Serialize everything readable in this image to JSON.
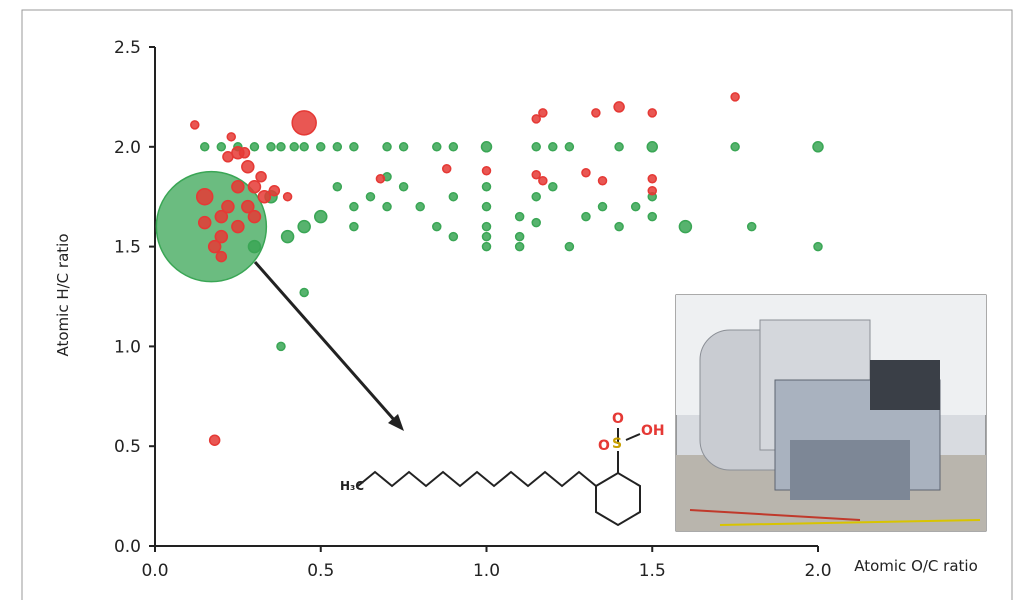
{
  "chart_data": {
    "type": "bubble",
    "x_label": "Atomic O/C ratio",
    "y_label": "Atomic H/C ratio",
    "xlim": [
      0,
      2.0
    ],
    "ylim": [
      0,
      2.5
    ],
    "xticks": [
      {
        "value": 0,
        "label": "0.0"
      },
      {
        "value": 0.5,
        "label": "0.5"
      },
      {
        "value": 1,
        "label": "1.0"
      },
      {
        "value": 1.5,
        "label": "1.5"
      },
      {
        "value": 2,
        "label": "2.0"
      }
    ],
    "yticks": [
      {
        "value": 0,
        "label": "0.0"
      },
      {
        "value": 0.5,
        "label": "0.5"
      },
      {
        "value": 1,
        "label": "1.0"
      },
      {
        "value": 1.5,
        "label": "1.5"
      },
      {
        "value": 2,
        "label": "2.0"
      },
      {
        "value": 2.5,
        "label": "2.5"
      }
    ],
    "series": [
      {
        "color": "#3aa655",
        "x": [
          0.17,
          0.15,
          0.2,
          0.25,
          0.3,
          0.35,
          0.38,
          0.42,
          0.45,
          0.5,
          0.55,
          0.6,
          0.7,
          0.75,
          0.85,
          0.9,
          1.0,
          1.15,
          1.2,
          1.25,
          1.4,
          1.5,
          1.75,
          2.0,
          0.45,
          0.38,
          0.55,
          0.6,
          0.6,
          0.65,
          0.7,
          0.7,
          0.75,
          0.8,
          0.85,
          0.9,
          0.9,
          1.0,
          1.0,
          1.0,
          1.0,
          1.0,
          1.1,
          1.1,
          1.1,
          1.15,
          1.15,
          1.2,
          1.25,
          1.3,
          1.35,
          1.4,
          1.45,
          1.5,
          1.5,
          1.6,
          1.8,
          2.0,
          0.4,
          0.45,
          0.5,
          0.35,
          0.3
        ],
        "y": [
          1.6,
          2.0,
          2.0,
          2.0,
          2.0,
          2.0,
          2.0,
          2.0,
          2.0,
          2.0,
          2.0,
          2.0,
          2.0,
          2.0,
          2.0,
          2.0,
          2.0,
          2.0,
          2.0,
          2.0,
          2.0,
          2.0,
          2.0,
          2.0,
          1.27,
          1.0,
          1.8,
          1.7,
          1.6,
          1.75,
          1.85,
          1.7,
          1.8,
          1.7,
          1.6,
          1.75,
          1.55,
          1.8,
          1.7,
          1.6,
          1.55,
          1.5,
          1.65,
          1.55,
          1.5,
          1.75,
          1.62,
          1.8,
          1.5,
          1.65,
          1.7,
          1.6,
          1.7,
          1.75,
          1.65,
          1.6,
          1.6,
          1.5,
          1.55,
          1.6,
          1.65,
          1.75,
          1.5
        ],
        "sizes": [
          55,
          4,
          4,
          4,
          4,
          4,
          4,
          4,
          4,
          4,
          4,
          4,
          4,
          4,
          4,
          4,
          5,
          4,
          4,
          4,
          4,
          5,
          4,
          5,
          4,
          4,
          4,
          4,
          4,
          4,
          4,
          4,
          4,
          4,
          4,
          4,
          4,
          4,
          4,
          4,
          4,
          4,
          4,
          4,
          4,
          4,
          4,
          4,
          4,
          4,
          4,
          4,
          4,
          4,
          4,
          6,
          4,
          4,
          6,
          6,
          6,
          6,
          6
        ]
      },
      {
        "color": "#e53935",
        "x": [
          0.12,
          0.45,
          0.18,
          0.15,
          0.2,
          0.2,
          0.22,
          0.25,
          0.25,
          0.28,
          0.28,
          0.3,
          0.3,
          0.33,
          0.22,
          0.25,
          0.27,
          0.32,
          0.36,
          0.4,
          0.15,
          0.18,
          0.2,
          0.23,
          0.88,
          0.68,
          1.0,
          1.15,
          1.17,
          1.33,
          1.4,
          1.5,
          1.75,
          1.15,
          1.17,
          1.3,
          1.35,
          1.5,
          1.5
        ],
        "y": [
          2.11,
          2.12,
          0.53,
          1.75,
          1.65,
          1.55,
          1.7,
          1.8,
          1.6,
          1.9,
          1.7,
          1.65,
          1.8,
          1.75,
          1.95,
          1.97,
          1.97,
          1.85,
          1.78,
          1.75,
          1.62,
          1.5,
          1.45,
          2.05,
          1.89,
          1.84,
          1.88,
          2.14,
          2.17,
          2.17,
          2.2,
          2.17,
          2.25,
          1.86,
          1.83,
          1.87,
          1.83,
          1.84,
          1.78
        ],
        "sizes": [
          4,
          12,
          5,
          8,
          6,
          6,
          6,
          6,
          6,
          6,
          6,
          6,
          6,
          6,
          5,
          6,
          5,
          5,
          5,
          4,
          6,
          6,
          5,
          4,
          4,
          4,
          4,
          4,
          4,
          4,
          5,
          4,
          4,
          4,
          4,
          4,
          4,
          4,
          4
        ]
      }
    ],
    "structure_labels": [
      "H₃C",
      "S",
      "O",
      "O",
      "OH"
    ]
  }
}
